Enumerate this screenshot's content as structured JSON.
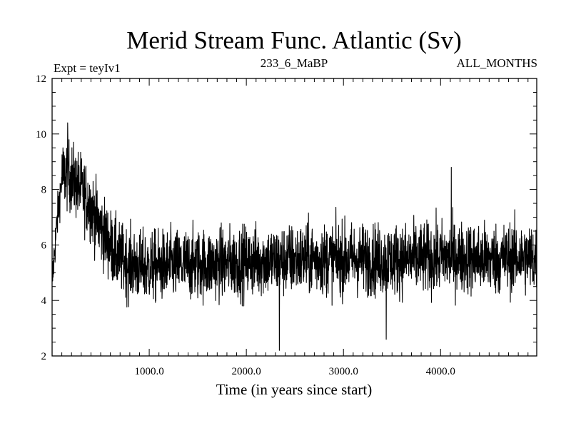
{
  "chart_data": {
    "type": "line",
    "title": "Merid Stream Func. Atlantic (Sv)",
    "subtitle_left": "Expt = teyIv1",
    "subtitle_center": "233_6_MaBP",
    "subtitle_right": "ALL_MONTHS",
    "xlabel": "Time (in years since start)",
    "ylabel": "",
    "xlim": [
      0,
      4990
    ],
    "ylim": [
      2,
      12
    ],
    "xticks": [
      1000,
      2000,
      3000,
      4000
    ],
    "xtick_labels": [
      "1000.0",
      "2000.0",
      "3000.0",
      "4000.0"
    ],
    "yticks": [
      2,
      4,
      6,
      8,
      10,
      12
    ],
    "ytick_labels": [
      "2",
      "4",
      "6",
      "8",
      "10",
      "12"
    ],
    "grid": false,
    "series": [
      {
        "name": "Merid Stream Func. Atlantic",
        "color": "#000000",
        "x": [
          0,
          20,
          50,
          80,
          100,
          150,
          200,
          250,
          300,
          350,
          400,
          450,
          500,
          550,
          600,
          650,
          700,
          800,
          900,
          1000,
          1200,
          1400,
          1600,
          1800,
          2000,
          2200,
          2340,
          2400,
          2600,
          2800,
          3000,
          3200,
          3440,
          3600,
          3800,
          4000,
          4200,
          4400,
          4600,
          4800,
          4990
        ],
        "values": [
          4.5,
          5.6,
          6.8,
          7.8,
          8.4,
          8.6,
          8.4,
          8.2,
          8.0,
          7.7,
          7.4,
          7.0,
          6.6,
          6.3,
          6.0,
          5.7,
          5.5,
          5.3,
          5.2,
          5.2,
          5.25,
          5.3,
          5.3,
          5.35,
          5.4,
          5.45,
          5.4,
          5.45,
          5.5,
          5.5,
          5.5,
          5.5,
          5.45,
          5.5,
          5.5,
          5.55,
          5.55,
          5.5,
          5.5,
          5.55,
          5.5
        ],
        "noise_amplitude": 0.9,
        "extremes": [
          {
            "x": 160,
            "y": 10.4,
            "label": "max"
          },
          {
            "x": 2340,
            "y": 2.2,
            "label": "min"
          },
          {
            "x": 3440,
            "y": 2.6,
            "label": "low"
          },
          {
            "x": 4110,
            "y": 8.8,
            "label": "high"
          }
        ]
      }
    ]
  }
}
